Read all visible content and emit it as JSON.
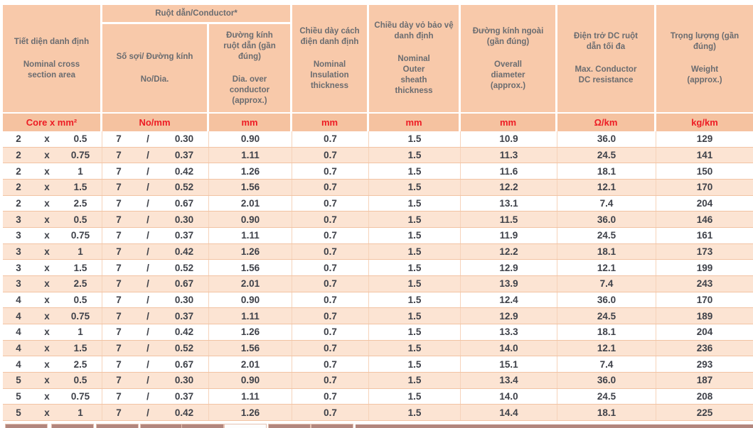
{
  "colors": {
    "header_bg": "#f8c9aa",
    "unit_bg": "#f5c2a0",
    "row_alt_bg": "#fce4d3",
    "row_line": "#f2c3a3",
    "col_line": "#f6d3ba",
    "header_text": "#6a6c70",
    "data_text": "#3e4149",
    "accent_red": "#ed1c24",
    "strip_bg": "#b2867d",
    "strip_border": "#e5c2b2"
  },
  "table": {
    "header": {
      "conductor_group": "Ruột dẫn/Conductor*",
      "cols": [
        {
          "vi": "Tiết diện danh định",
          "en": "Nominal cross section area"
        },
        {
          "vi": "Số sợi/ Đường kính",
          "en": "No/Dia."
        },
        {
          "vi": "Đường kính ruột dẫn (gần đúng)",
          "en": "Dia. over conductor (approx.)"
        },
        {
          "vi": "Chiều dày cách điện danh định",
          "en": "Nominal Insulation thickness"
        },
        {
          "vi": "Chiều dày vỏ bảo vệ danh định",
          "en": "Nominal Outer sheath thickness"
        },
        {
          "vi": "Đường kính ngoài (gần đúng)",
          "en": "Overall diameter (approx.)"
        },
        {
          "vi": "Điện trở DC ruột dẫn tối đa",
          "en": "Max. Conductor DC resistance"
        },
        {
          "vi": "Trọng lượng (gần đúng)",
          "en": "Weight (approx.)"
        }
      ]
    },
    "units": [
      "Core x mm²",
      "No/mm",
      "mm",
      "mm",
      "mm",
      "mm",
      "Ω/km",
      "kg/km"
    ],
    "x_sep": "x",
    "slash_sep": "/",
    "rows": [
      [
        "2",
        "0.5",
        "7",
        "0.30",
        "0.90",
        "0.7",
        "1.5",
        "10.9",
        "36.0",
        "129"
      ],
      [
        "2",
        "0.75",
        "7",
        "0.37",
        "1.11",
        "0.7",
        "1.5",
        "11.3",
        "24.5",
        "141"
      ],
      [
        "2",
        "1",
        "7",
        "0.42",
        "1.26",
        "0.7",
        "1.5",
        "11.6",
        "18.1",
        "150"
      ],
      [
        "2",
        "1.5",
        "7",
        "0.52",
        "1.56",
        "0.7",
        "1.5",
        "12.2",
        "12.1",
        "170"
      ],
      [
        "2",
        "2.5",
        "7",
        "0.67",
        "2.01",
        "0.7",
        "1.5",
        "13.1",
        "7.4",
        "204"
      ],
      [
        "3",
        "0.5",
        "7",
        "0.30",
        "0.90",
        "0.7",
        "1.5",
        "11.5",
        "36.0",
        "146"
      ],
      [
        "3",
        "0.75",
        "7",
        "0.37",
        "1.11",
        "0.7",
        "1.5",
        "11.9",
        "24.5",
        "161"
      ],
      [
        "3",
        "1",
        "7",
        "0.42",
        "1.26",
        "0.7",
        "1.5",
        "12.2",
        "18.1",
        "173"
      ],
      [
        "3",
        "1.5",
        "7",
        "0.52",
        "1.56",
        "0.7",
        "1.5",
        "12.9",
        "12.1",
        "199"
      ],
      [
        "3",
        "2.5",
        "7",
        "0.67",
        "2.01",
        "0.7",
        "1.5",
        "13.9",
        "7.4",
        "243"
      ],
      [
        "4",
        "0.5",
        "7",
        "0.30",
        "0.90",
        "0.7",
        "1.5",
        "12.4",
        "36.0",
        "170"
      ],
      [
        "4",
        "0.75",
        "7",
        "0.37",
        "1.11",
        "0.7",
        "1.5",
        "12.9",
        "24.5",
        "189"
      ],
      [
        "4",
        "1",
        "7",
        "0.42",
        "1.26",
        "0.7",
        "1.5",
        "13.3",
        "18.1",
        "204"
      ],
      [
        "4",
        "1.5",
        "7",
        "0.52",
        "1.56",
        "0.7",
        "1.5",
        "14.0",
        "12.1",
        "236"
      ],
      [
        "4",
        "2.5",
        "7",
        "0.67",
        "2.01",
        "0.7",
        "1.5",
        "15.1",
        "7.4",
        "293"
      ],
      [
        "5",
        "0.5",
        "7",
        "0.30",
        "0.90",
        "0.7",
        "1.5",
        "13.4",
        "36.0",
        "187"
      ],
      [
        "5",
        "0.75",
        "7",
        "0.37",
        "1.11",
        "0.7",
        "1.5",
        "14.0",
        "24.5",
        "208"
      ],
      [
        "5",
        "1",
        "7",
        "0.42",
        "1.26",
        "0.7",
        "1.5",
        "14.4",
        "18.1",
        "225"
      ]
    ]
  }
}
